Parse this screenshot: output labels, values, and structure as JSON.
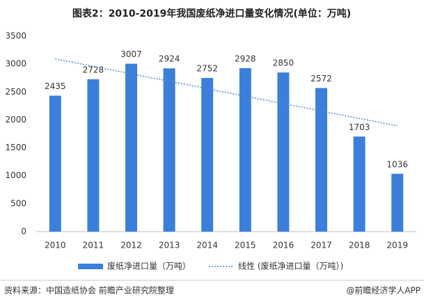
{
  "chart_data": {
    "type": "bar",
    "title": "图表2：2010-2019年我国废纸净进口量变化情况(单位：万吨)",
    "categories": [
      "2010",
      "2011",
      "2012",
      "2013",
      "2014",
      "2015",
      "2016",
      "2017",
      "2018",
      "2019"
    ],
    "series": [
      {
        "name": "废纸净进口量（万吨）",
        "color": "#3c7fdb",
        "values": [
          2435,
          2728,
          3007,
          2924,
          2752,
          2928,
          2850,
          2572,
          1703,
          1036
        ]
      },
      {
        "name": "线性 (废纸净进口量（万吨）)",
        "color": "#4a8ad8",
        "trendline": "linear"
      }
    ],
    "ylim": [
      0,
      3500
    ],
    "yticks": [
      0,
      500,
      1000,
      1500,
      2000,
      2500,
      3000,
      3500
    ],
    "grid": false,
    "source": "资料来源：中国造纸协会 前瞻产业研究院整理",
    "credit": "@前瞻经济学人APP"
  }
}
